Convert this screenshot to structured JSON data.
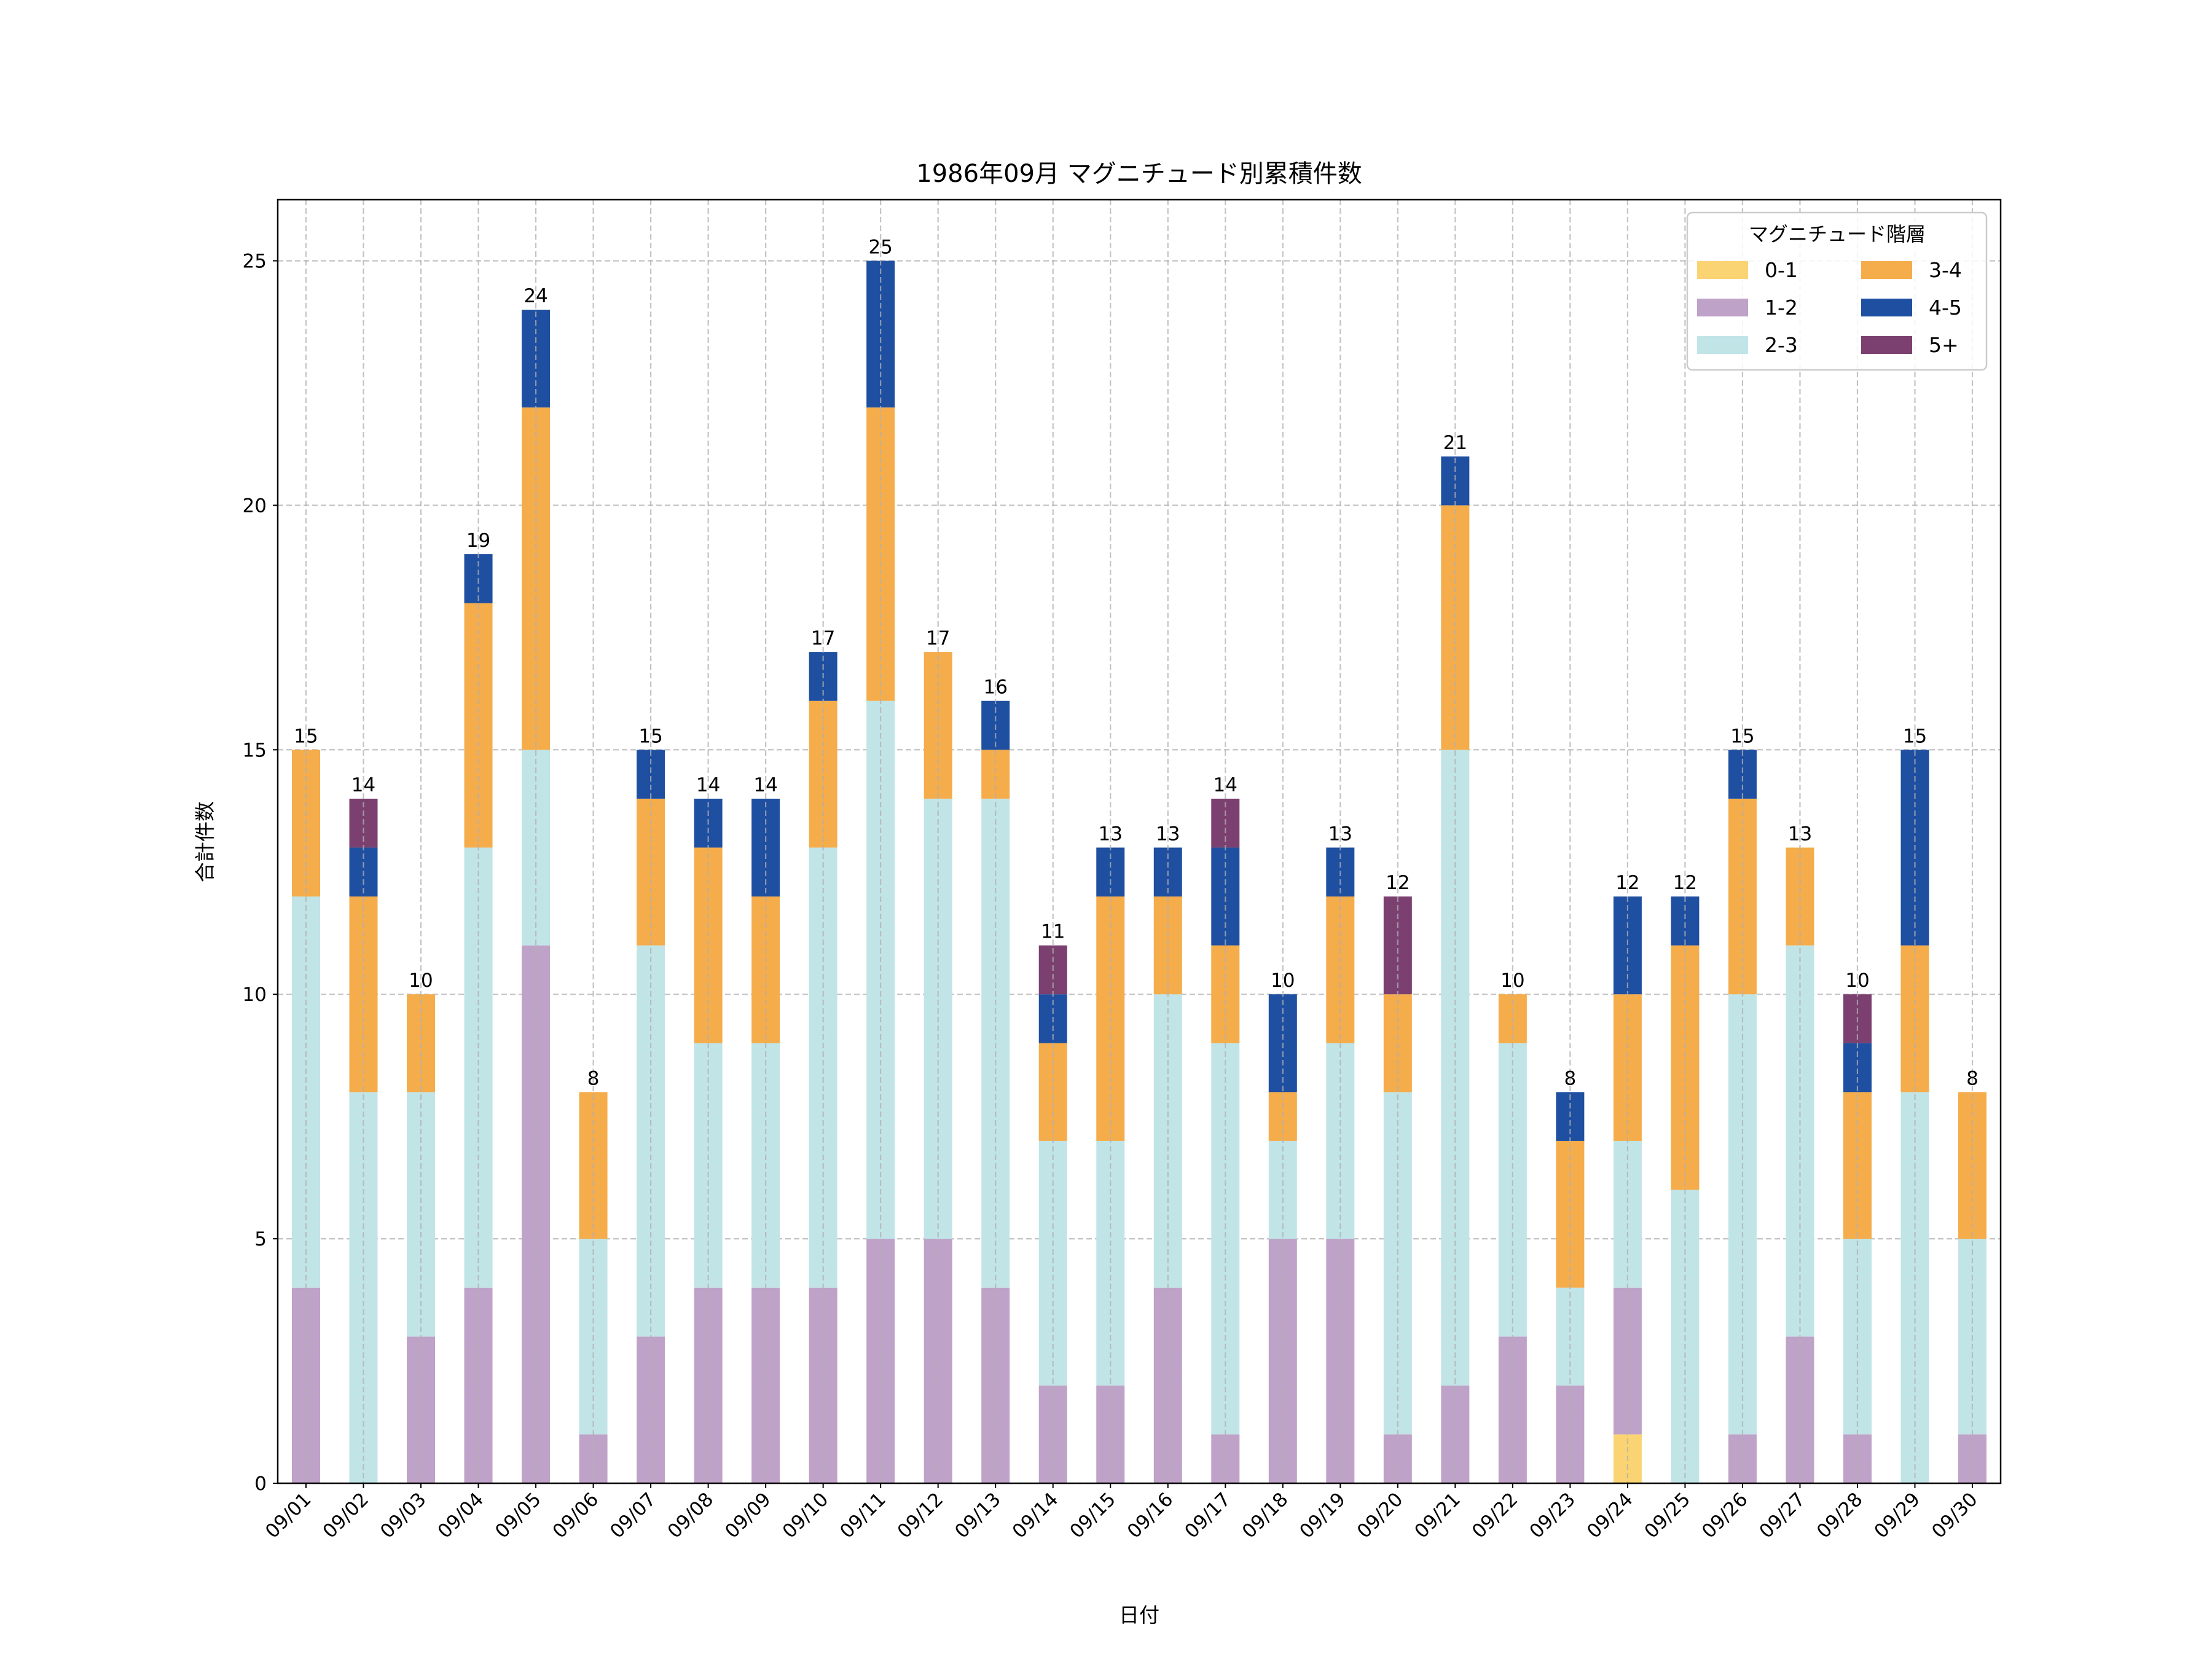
{
  "chart_data": {
    "type": "bar",
    "stacked": true,
    "title": "1986年09月 マグニチュード別累積件数",
    "xlabel": "日付",
    "ylabel": "合計件数",
    "ylim": [
      0,
      26.25
    ],
    "yticks": [
      0,
      5,
      10,
      15,
      20,
      25
    ],
    "grid": true,
    "legend": {
      "title": "マグニチュード階層",
      "placement": "top-right",
      "columns": 2
    },
    "categories": [
      "09/01",
      "09/02",
      "09/03",
      "09/04",
      "09/05",
      "09/06",
      "09/07",
      "09/08",
      "09/09",
      "09/10",
      "09/11",
      "09/12",
      "09/13",
      "09/14",
      "09/15",
      "09/16",
      "09/17",
      "09/18",
      "09/19",
      "09/20",
      "09/21",
      "09/22",
      "09/23",
      "09/24",
      "09/25",
      "09/26",
      "09/27",
      "09/28",
      "09/29",
      "09/30"
    ],
    "series": [
      {
        "name": "0-1",
        "color": "#FAD473",
        "values": [
          0,
          0,
          0,
          0,
          0,
          0,
          0,
          0,
          0,
          0,
          0,
          0,
          0,
          0,
          0,
          0,
          0,
          0,
          0,
          0,
          0,
          0,
          0,
          1,
          0,
          0,
          0,
          0,
          0,
          0
        ]
      },
      {
        "name": "1-2",
        "color": "#BFA2C7",
        "values": [
          4,
          0,
          3,
          4,
          11,
          1,
          3,
          4,
          4,
          4,
          5,
          5,
          4,
          2,
          2,
          4,
          1,
          5,
          5,
          1,
          2,
          3,
          2,
          3,
          0,
          1,
          3,
          1,
          0,
          1
        ]
      },
      {
        "name": "2-3",
        "color": "#C1E4E7",
        "values": [
          8,
          8,
          5,
          9,
          4,
          4,
          8,
          5,
          5,
          9,
          11,
          9,
          10,
          5,
          5,
          6,
          8,
          2,
          4,
          7,
          13,
          6,
          2,
          3,
          6,
          9,
          8,
          4,
          8,
          4
        ]
      },
      {
        "name": "3-4",
        "color": "#F5AC4A",
        "values": [
          3,
          4,
          2,
          5,
          7,
          3,
          3,
          4,
          3,
          3,
          6,
          3,
          1,
          2,
          5,
          2,
          2,
          1,
          3,
          2,
          5,
          1,
          3,
          3,
          5,
          4,
          2,
          3,
          3,
          3
        ]
      },
      {
        "name": "4-5",
        "color": "#1F4FA0",
        "values": [
          0,
          1,
          0,
          1,
          2,
          0,
          1,
          1,
          2,
          1,
          3,
          0,
          1,
          1,
          1,
          1,
          2,
          2,
          1,
          0,
          1,
          0,
          1,
          2,
          1,
          1,
          0,
          1,
          4,
          0
        ]
      },
      {
        "name": "5+",
        "color": "#7B4070",
        "values": [
          0,
          1,
          0,
          0,
          0,
          0,
          0,
          0,
          0,
          0,
          0,
          0,
          0,
          1,
          0,
          0,
          1,
          0,
          0,
          2,
          0,
          0,
          0,
          0,
          0,
          0,
          0,
          1,
          0,
          0
        ]
      }
    ],
    "totals": [
      15,
      14,
      10,
      19,
      24,
      8,
      15,
      14,
      14,
      17,
      25,
      17,
      16,
      11,
      13,
      13,
      14,
      10,
      13,
      12,
      21,
      10,
      8,
      12,
      12,
      15,
      13,
      10,
      15,
      8
    ]
  }
}
